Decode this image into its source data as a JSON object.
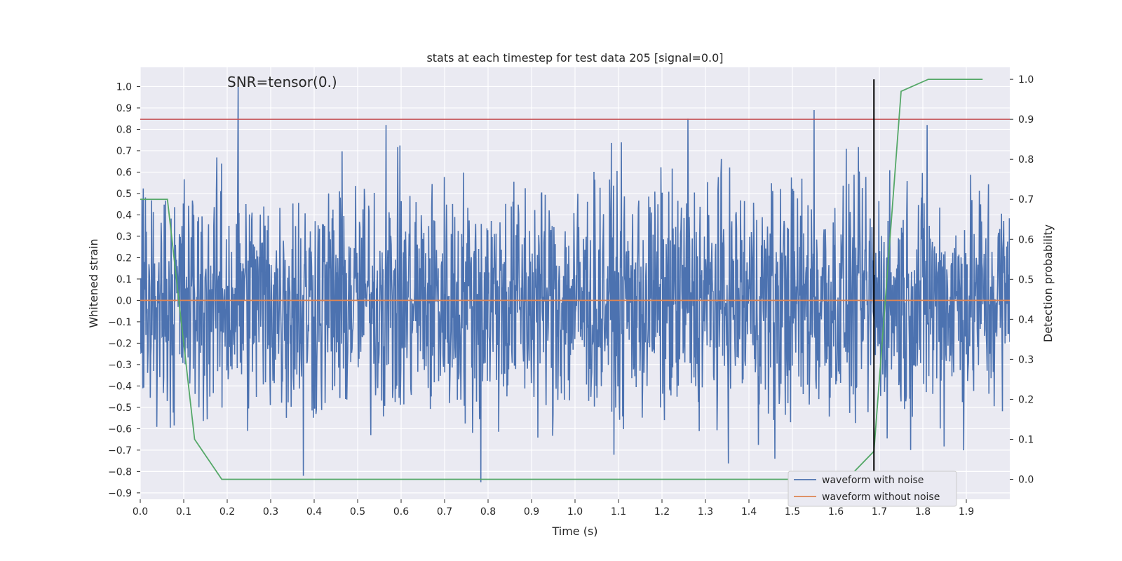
{
  "chart_data": {
    "type": "line",
    "title": "stats at each timestep for test data 205 [signal=0.0]",
    "xlabel": "Time (s)",
    "ylabel": "Whitened strain",
    "y2label": "Detection probability",
    "annotation": "SNR=tensor(0.)",
    "xlim": [
      0.0,
      2.0
    ],
    "ylim": [
      -0.93,
      1.09
    ],
    "y2lim": [
      -0.05,
      1.03
    ],
    "xticks": [
      "0.0",
      "0.1",
      "0.2",
      "0.3",
      "0.4",
      "0.5",
      "0.6",
      "0.7",
      "0.8",
      "0.9",
      "1.0",
      "1.1",
      "1.2",
      "1.3",
      "1.4",
      "1.5",
      "1.6",
      "1.7",
      "1.8",
      "1.9"
    ],
    "yticks": [
      "1.0",
      "0.9",
      "0.8",
      "0.7",
      "0.6",
      "0.5",
      "0.4",
      "0.3",
      "0.2",
      "0.1",
      "0.0",
      "-0.1",
      "-0.2",
      "-0.3",
      "-0.4",
      "-0.5",
      "-0.6",
      "-0.7",
      "-0.8",
      "-0.9"
    ],
    "y2ticks": [
      "1.0",
      "0.9",
      "0.8",
      "0.7",
      "0.6",
      "0.5",
      "0.4",
      "0.3",
      "0.2",
      "0.1",
      "0.0"
    ],
    "grid": true,
    "legend_position": "lower-right",
    "colors": {
      "noisy": "#4c72b0",
      "clean": "#dd8452",
      "probability": "#55a868",
      "threshold": "#c44e52",
      "marker": "#000000",
      "axes_bg": "#eaeaf2"
    },
    "series": [
      {
        "name": "waveform with noise",
        "axis": "left",
        "note": "dense noise trace, ~2000 samples, amplitude mostly within -0.6..0.6",
        "peaks": [
          {
            "x": 0.225,
            "y": 1.0
          },
          {
            "x": 0.565,
            "y": 0.82
          },
          {
            "x": 1.26,
            "y": 0.85
          },
          {
            "x": 1.55,
            "y": 0.89
          },
          {
            "x": 1.81,
            "y": 0.82
          },
          {
            "x": 0.783,
            "y": -0.85
          },
          {
            "x": 0.375,
            "y": -0.82
          },
          {
            "x": 1.46,
            "y": -0.74
          }
        ]
      },
      {
        "name": "waveform without noise",
        "axis": "left",
        "x": [
          0.0,
          2.0
        ],
        "y": [
          0.0,
          0.0
        ]
      },
      {
        "axis": "right",
        "x": [
          0.0,
          0.0625,
          0.125,
          0.1875,
          0.25,
          0.875,
          1.0,
          1.625,
          1.6875,
          1.75,
          1.8125,
          1.875,
          1.9375
        ],
        "y": [
          0.7,
          0.7,
          0.1,
          0.0,
          0.0,
          0.0,
          0.0,
          0.0,
          0.07,
          0.97,
          1.0,
          1.0,
          1.0
        ]
      }
    ],
    "threshold_right": 0.9,
    "marker_x": 1.6875,
    "marker_y_range": [
      0.0,
      1.0
    ]
  }
}
